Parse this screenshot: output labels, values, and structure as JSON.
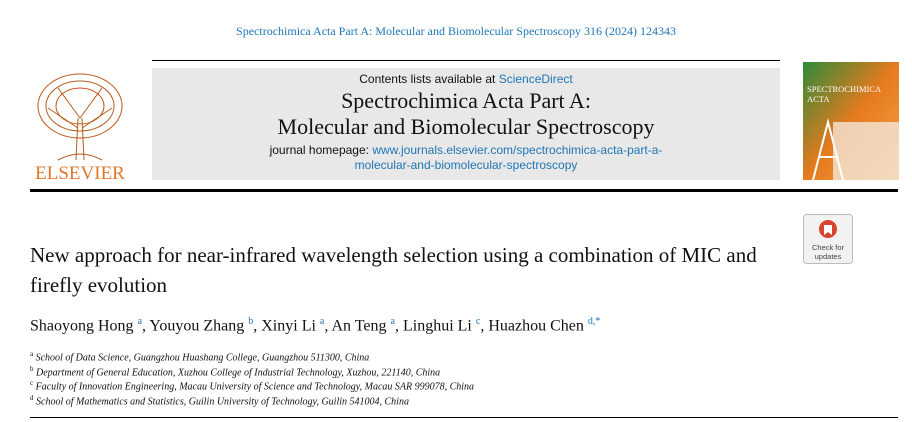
{
  "header": {
    "citation": "Spectrochimica Acta Part A: Molecular and Biomolecular Spectroscopy 316 (2024) 124343",
    "contents_prefix": "Contents lists available at",
    "contents_link": "ScienceDirect",
    "journal_title_lines": [
      "Spectrochimica Acta Part A:",
      "Molecular and Biomolecular Spectroscopy"
    ],
    "homepage_prefix": "journal homepage:",
    "homepage_url_lines": [
      "www.journals.elsevier.com/spectrochimica-acta-part-a-",
      "molecular-and-biomolecular-spectroscopy"
    ],
    "publisher": "ELSEVIER",
    "cover_title_lines": [
      "SPECTROCHIMICA",
      "ACTA"
    ],
    "badge_lines": [
      "Check for",
      "updates"
    ]
  },
  "article": {
    "title": "New approach for near-infrared wavelength selection using a combination of MIC and firefly evolution",
    "authors": [
      {
        "name": "Shaoyong Hong",
        "aff": "a"
      },
      {
        "name": "Youyou Zhang",
        "aff": "b"
      },
      {
        "name": "Xinyi Li",
        "aff": "a"
      },
      {
        "name": "An Teng",
        "aff": "a"
      },
      {
        "name": "Linghui Li",
        "aff": "c"
      },
      {
        "name": "Huazhou Chen",
        "aff": "d,*"
      }
    ],
    "affiliations": [
      {
        "mark": "a",
        "text": "School of Data Science, Guangzhou Huashang College, Guangzhou 511300, China"
      },
      {
        "mark": "b",
        "text": "Department of General Education, Xuzhou College of Industrial Technology, Xuzhou, 221140, China"
      },
      {
        "mark": "c",
        "text": "Faculty of Innovation Engineering, Macau University of Science and Technology, Macau SAR 999078, China"
      },
      {
        "mark": "d",
        "text": "School of Mathematics and Statistics, Guilin University of Technology, Guilin 541004, China"
      }
    ]
  }
}
